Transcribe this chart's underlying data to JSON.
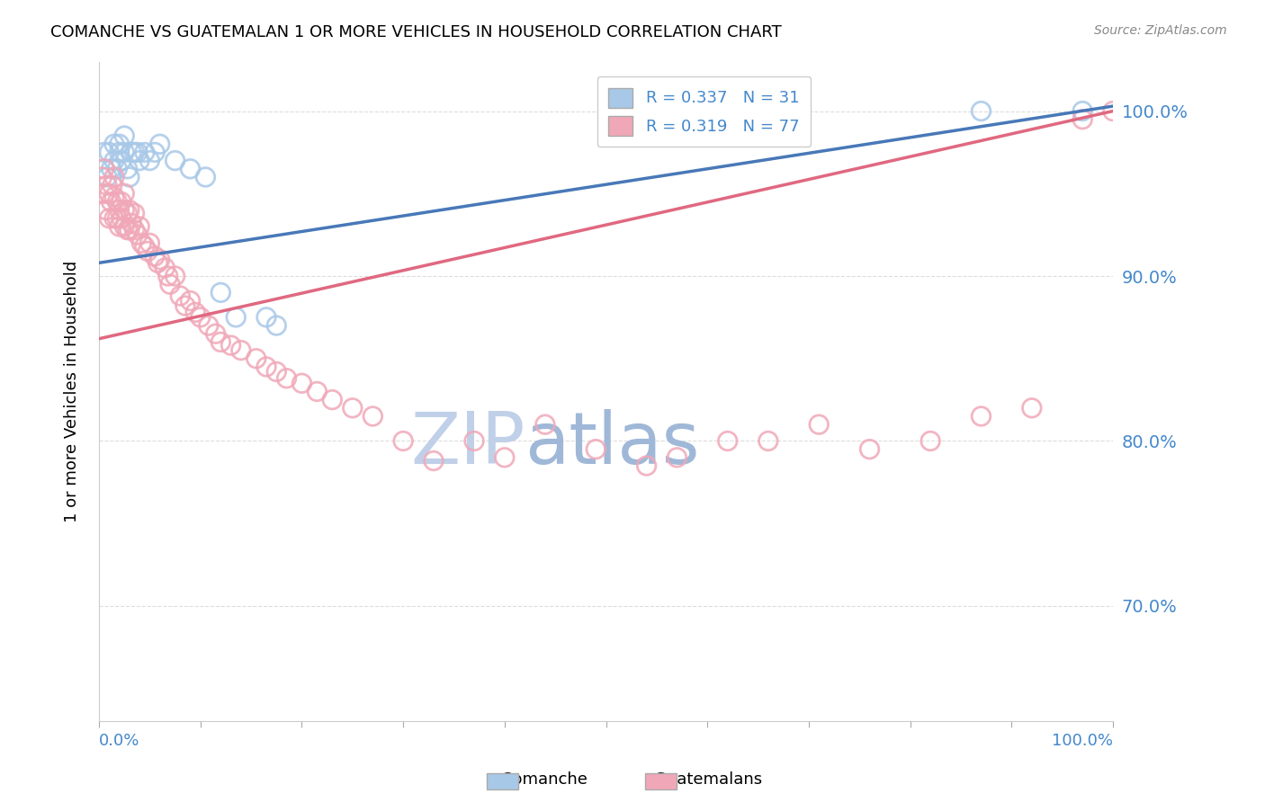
{
  "title": "COMANCHE VS GUATEMALAN 1 OR MORE VEHICLES IN HOUSEHOLD CORRELATION CHART",
  "source": "Source: ZipAtlas.com",
  "ylabel": "1 or more Vehicles in Household",
  "y_ticks": [
    70.0,
    80.0,
    90.0,
    100.0
  ],
  "x_range": [
    0.0,
    1.0
  ],
  "y_range": [
    0.63,
    1.03
  ],
  "legend_label1_r": "0.337",
  "legend_label1_n": "31",
  "legend_label2_r": "0.319",
  "legend_label2_n": "77",
  "color_blue": "#A8C8E8",
  "color_pink": "#F0A8B8",
  "color_blue_line": "#4878B8",
  "color_pink_line": "#E06880",
  "color_axis_text": "#4488CC",
  "watermark_zip_color": "#C0D0E8",
  "watermark_atlas_color": "#A0B8D8",
  "comanche_x": [
    0.005,
    0.008,
    0.01,
    0.012,
    0.015,
    0.015,
    0.018,
    0.02,
    0.02,
    0.022,
    0.025,
    0.025,
    0.028,
    0.03,
    0.032,
    0.035,
    0.038,
    0.04,
    0.045,
    0.05,
    0.055,
    0.06,
    0.075,
    0.09,
    0.105,
    0.12,
    0.135,
    0.165,
    0.175,
    0.87,
    0.97
  ],
  "comanche_y": [
    0.975,
    0.96,
    0.975,
    0.965,
    0.97,
    0.98,
    0.965,
    0.975,
    0.98,
    0.97,
    0.975,
    0.985,
    0.965,
    0.96,
    0.975,
    0.975,
    0.975,
    0.97,
    0.975,
    0.97,
    0.975,
    0.98,
    0.97,
    0.965,
    0.96,
    0.89,
    0.875,
    0.875,
    0.87,
    1.0,
    1.0
  ],
  "guatemalan_x": [
    0.003,
    0.005,
    0.005,
    0.007,
    0.008,
    0.01,
    0.01,
    0.012,
    0.013,
    0.015,
    0.015,
    0.015,
    0.018,
    0.018,
    0.02,
    0.02,
    0.022,
    0.022,
    0.025,
    0.025,
    0.025,
    0.028,
    0.028,
    0.03,
    0.03,
    0.032,
    0.035,
    0.035,
    0.038,
    0.04,
    0.042,
    0.045,
    0.048,
    0.05,
    0.055,
    0.058,
    0.06,
    0.065,
    0.068,
    0.07,
    0.075,
    0.08,
    0.085,
    0.09,
    0.095,
    0.1,
    0.108,
    0.115,
    0.12,
    0.13,
    0.14,
    0.155,
    0.165,
    0.175,
    0.185,
    0.2,
    0.215,
    0.23,
    0.25,
    0.27,
    0.3,
    0.33,
    0.37,
    0.4,
    0.44,
    0.49,
    0.54,
    0.57,
    0.62,
    0.66,
    0.71,
    0.76,
    0.82,
    0.87,
    0.92,
    0.97,
    1.0
  ],
  "guatemalan_y": [
    0.96,
    0.95,
    0.965,
    0.94,
    0.955,
    0.935,
    0.95,
    0.945,
    0.955,
    0.935,
    0.948,
    0.96,
    0.935,
    0.945,
    0.93,
    0.94,
    0.935,
    0.945,
    0.93,
    0.94,
    0.95,
    0.928,
    0.938,
    0.928,
    0.94,
    0.932,
    0.928,
    0.938,
    0.925,
    0.93,
    0.92,
    0.918,
    0.915,
    0.92,
    0.912,
    0.908,
    0.91,
    0.905,
    0.9,
    0.895,
    0.9,
    0.888,
    0.882,
    0.885,
    0.878,
    0.875,
    0.87,
    0.865,
    0.86,
    0.858,
    0.855,
    0.85,
    0.845,
    0.842,
    0.838,
    0.835,
    0.83,
    0.825,
    0.82,
    0.815,
    0.8,
    0.788,
    0.8,
    0.79,
    0.81,
    0.795,
    0.785,
    0.79,
    0.8,
    0.8,
    0.81,
    0.795,
    0.8,
    0.815,
    0.82,
    0.995,
    1.0
  ],
  "blue_line_y_start": 0.908,
  "blue_line_y_end": 1.003,
  "pink_line_y_start": 0.862,
  "pink_line_y_end": 1.0
}
